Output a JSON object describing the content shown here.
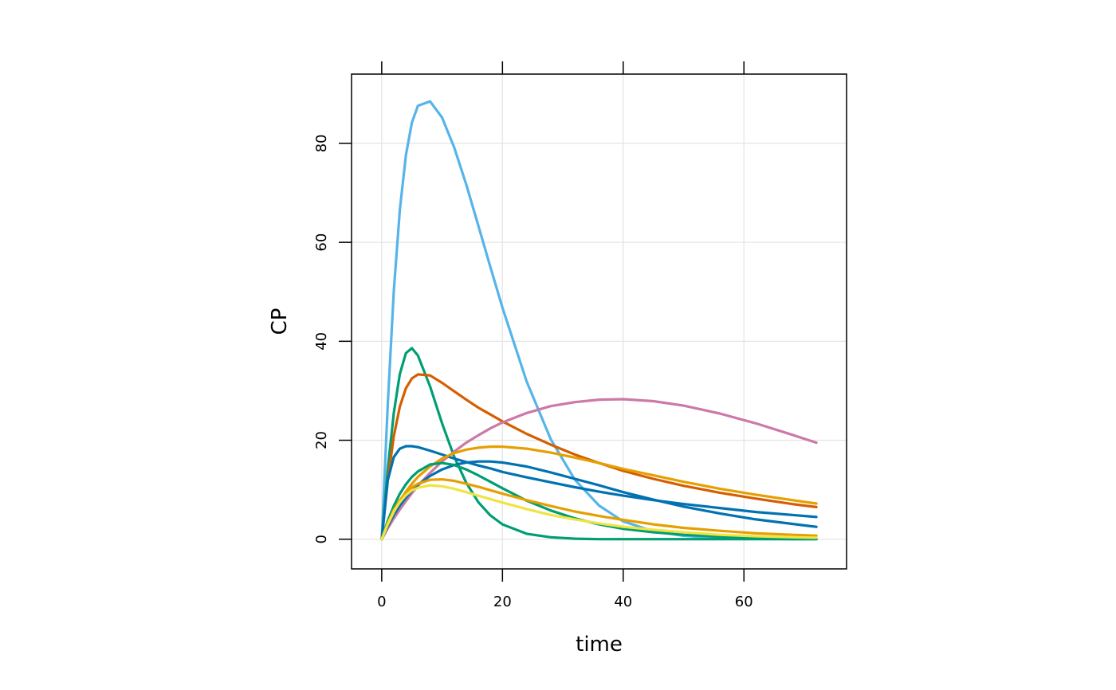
{
  "chart_data": {
    "type": "line",
    "xlabel": "time",
    "ylabel": "CP",
    "xlim": [
      -5,
      77
    ],
    "ylim": [
      -6,
      94
    ],
    "x_ticks": [
      0,
      20,
      40,
      60
    ],
    "y_ticks": [
      0,
      20,
      40,
      60,
      80
    ],
    "x_tick_labels": [
      "0",
      "20",
      "40",
      "60"
    ],
    "y_tick_labels": [
      "0",
      "20",
      "40",
      "60",
      "80"
    ],
    "grid": true,
    "legend": "none",
    "x": [
      0,
      1,
      2,
      3,
      4,
      5,
      6,
      8,
      10,
      12,
      14,
      16,
      18,
      20,
      24,
      28,
      32,
      36,
      40,
      45,
      50,
      56,
      62,
      68,
      72
    ],
    "series": [
      {
        "color": "#56B4E9",
        "values": [
          0,
          27.1,
          50.1,
          66.6,
          77.6,
          84.2,
          87.6,
          88.5,
          85.2,
          79.2,
          71.7,
          63.4,
          55.0,
          46.8,
          31.9,
          20.2,
          12.0,
          6.8,
          3.6,
          1.6,
          0.7,
          0.2,
          0.1,
          0.0,
          0.0
        ]
      },
      {
        "color": "#009E73",
        "values": [
          0,
          14.1,
          25.5,
          33.4,
          37.6,
          38.6,
          37.1,
          30.9,
          23.4,
          16.7,
          11.4,
          7.5,
          4.8,
          3.0,
          1.1,
          0.4,
          0.1,
          0.0,
          0.0,
          0.0,
          0.0,
          0.0,
          0.0,
          0.0,
          0.0
        ]
      },
      {
        "color": "#D55E00",
        "values": [
          0,
          11.9,
          20.8,
          26.8,
          30.5,
          32.5,
          33.3,
          33.1,
          31.6,
          29.9,
          28.2,
          26.6,
          25.2,
          23.8,
          21.3,
          19.1,
          17.1,
          15.4,
          13.8,
          12.2,
          10.8,
          9.4,
          8.2,
          7.1,
          6.5
        ]
      },
      {
        "color": "#CC79A7",
        "values": [
          0,
          2.2,
          4.2,
          6.0,
          7.7,
          9.3,
          10.8,
          13.4,
          15.7,
          17.7,
          19.5,
          21.0,
          22.4,
          23.6,
          25.5,
          26.9,
          27.7,
          28.2,
          28.3,
          27.9,
          27.0,
          25.4,
          23.4,
          21.1,
          19.5
        ]
      },
      {
        "color": "#0072B2",
        "values": [
          0,
          11.9,
          16.6,
          18.3,
          18.8,
          18.8,
          18.6,
          17.9,
          17.1,
          16.3,
          15.6,
          14.9,
          14.3,
          13.6,
          12.5,
          11.5,
          10.5,
          9.6,
          8.8,
          7.9,
          7.1,
          6.3,
          5.5,
          4.9,
          4.5
        ]
      },
      {
        "color": "#0072B2",
        "values": [
          0,
          2.6,
          4.9,
          6.8,
          8.4,
          9.8,
          11.0,
          12.8,
          14.1,
          15.0,
          15.5,
          15.7,
          15.7,
          15.5,
          14.7,
          13.5,
          12.2,
          10.9,
          9.5,
          8.0,
          6.6,
          5.2,
          4.0,
          3.1,
          2.5
        ]
      },
      {
        "color": "#E69F00",
        "values": [
          0,
          2.9,
          5.5,
          7.7,
          9.6,
          11.2,
          12.6,
          14.7,
          16.3,
          17.4,
          18.1,
          18.5,
          18.7,
          18.7,
          18.3,
          17.5,
          16.5,
          15.4,
          14.2,
          12.9,
          11.6,
          10.2,
          9.0,
          7.9,
          7.2
        ]
      },
      {
        "color": "#009E73",
        "values": [
          0,
          3.7,
          6.7,
          9.2,
          11.1,
          12.6,
          13.7,
          15.1,
          15.4,
          15.0,
          14.1,
          12.9,
          11.6,
          10.3,
          7.8,
          5.8,
          4.2,
          3.0,
          2.1,
          1.4,
          0.9,
          0.5,
          0.3,
          0.2,
          0.1
        ]
      },
      {
        "color": "#E69F00",
        "values": [
          0,
          3.2,
          5.9,
          7.9,
          9.4,
          10.5,
          11.2,
          12.0,
          12.1,
          11.8,
          11.2,
          10.6,
          9.9,
          9.2,
          7.9,
          6.7,
          5.6,
          4.7,
          3.9,
          3.0,
          2.3,
          1.7,
          1.2,
          0.9,
          0.7
        ]
      },
      {
        "color": "#F0E442",
        "values": [
          0,
          3.1,
          5.6,
          7.5,
          8.9,
          9.9,
          10.4,
          10.9,
          10.7,
          10.2,
          9.5,
          8.8,
          8.1,
          7.4,
          6.1,
          4.9,
          4.0,
          3.2,
          2.5,
          1.9,
          1.4,
          0.9,
          0.6,
          0.4,
          0.3
        ]
      }
    ]
  }
}
